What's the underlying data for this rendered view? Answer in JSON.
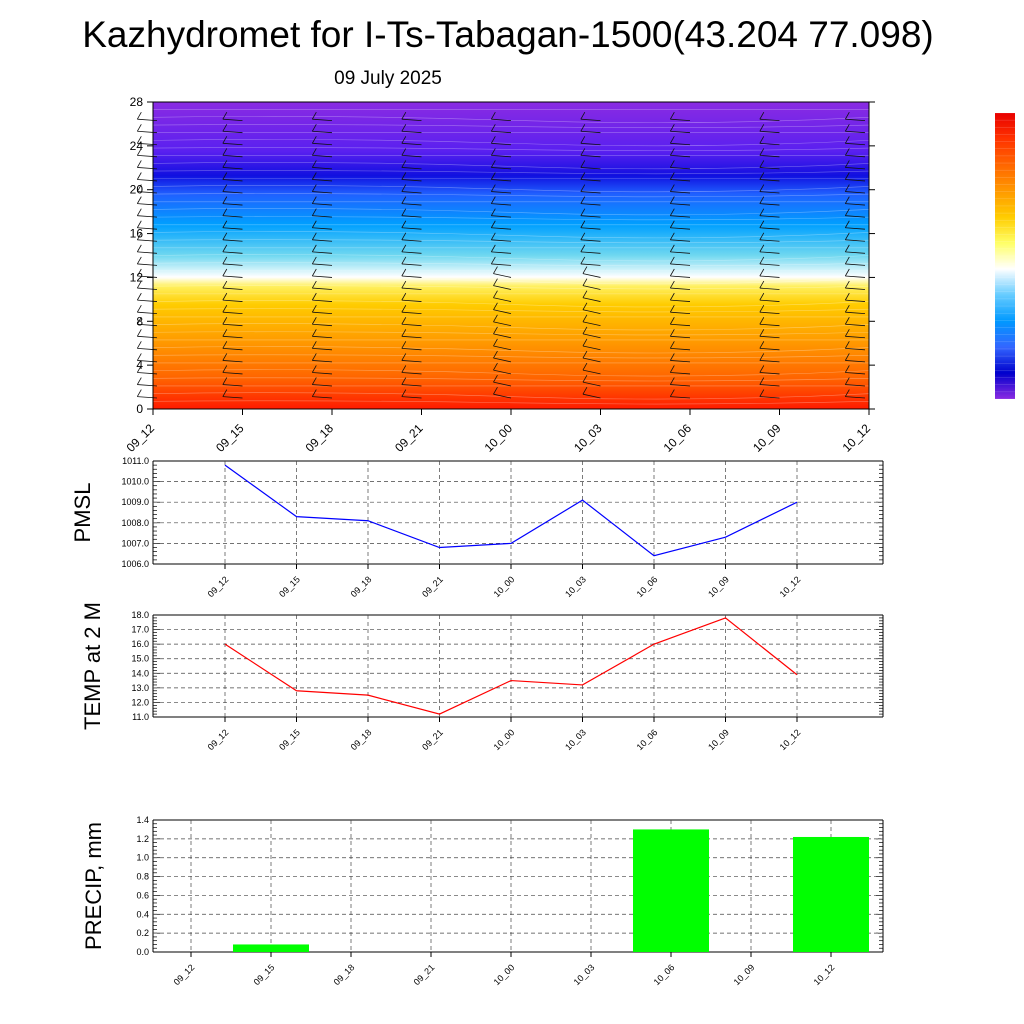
{
  "title": "Kazhydromet for I-Ts-Tabagan-1500(43.204 77.098)",
  "subtitle": "09 July 2025",
  "colors": {
    "pmsl_line": "#0000ff",
    "temp_line": "#ff0000",
    "precip_bar": "#00ff00",
    "grid": "#555555"
  },
  "chart_data": [
    {
      "type": "heatmap",
      "title": "",
      "xlabel": "",
      "ylabel": "",
      "x": [
        "09_12",
        "09_15",
        "09_18",
        "09_21",
        "10_00",
        "10_03",
        "10_06",
        "10_09",
        "10_12"
      ],
      "yticks": [
        0,
        4,
        8,
        12,
        16,
        20,
        24,
        28
      ],
      "ylim": [
        0,
        28
      ],
      "colormap": [
        "#ff1a00",
        "#ff6400",
        "#ff9a00",
        "#ffcc00",
        "#fff060",
        "#ffffff",
        "#70d8f0",
        "#00a0ff",
        "#2060ff",
        "#1010e0",
        "#5a20f0",
        "#8a2be2"
      ],
      "colorbar_colors": [
        "#e80000",
        "#ff3300",
        "#ff6600",
        "#ff9900",
        "#ffcc00",
        "#ffff66",
        "#ffffff",
        "#66ccff",
        "#0099ff",
        "#3366ff",
        "#0000cc",
        "#8a2be2"
      ],
      "wind_barbs": true
    },
    {
      "type": "line",
      "title": "",
      "xlabel": "",
      "ylabel": "PMSL",
      "x": [
        "09_12",
        "09_15",
        "09_18",
        "09_21",
        "10_00",
        "10_03",
        "10_06",
        "10_09",
        "10_12"
      ],
      "series": [
        {
          "values": [
            1010.8,
            1008.3,
            1008.1,
            1006.8,
            1007.0,
            1009.1,
            1006.4,
            1007.3,
            1009.0
          ]
        }
      ],
      "yticks": [
        "1006.0",
        "1007.0",
        "1008.0",
        "1009.0",
        "1010.0",
        "1011.0"
      ],
      "ylim": [
        1006,
        1011
      ],
      "grid": true
    },
    {
      "type": "line",
      "title": "",
      "xlabel": "",
      "ylabel": "TEMP at 2 M",
      "x": [
        "09_12",
        "09_15",
        "09_18",
        "09_21",
        "10_00",
        "10_03",
        "10_06",
        "10_09",
        "10_12"
      ],
      "series": [
        {
          "values": [
            16.0,
            12.8,
            12.5,
            11.2,
            13.5,
            13.2,
            16.0,
            17.8,
            13.9
          ]
        }
      ],
      "yticks": [
        "11.0",
        "12.0",
        "13.0",
        "14.0",
        "15.0",
        "16.0",
        "17.0",
        "18.0"
      ],
      "ylim": [
        11,
        18
      ],
      "grid": true
    },
    {
      "type": "bar",
      "title": "",
      "xlabel": "",
      "ylabel": "PRECIP, mm",
      "categories": [
        "09_12",
        "09_15",
        "09_18",
        "09_21",
        "10_00",
        "10_03",
        "10_06",
        "10_09",
        "10_12"
      ],
      "values": [
        0.0,
        0.08,
        0.0,
        0.0,
        0.0,
        0.0,
        1.3,
        0.0,
        1.22
      ],
      "yticks": [
        "0.0",
        "0.2",
        "0.4",
        "0.6",
        "0.8",
        "1.0",
        "1.2",
        "1.4"
      ],
      "ylim": [
        0,
        1.4
      ],
      "grid": true
    }
  ]
}
